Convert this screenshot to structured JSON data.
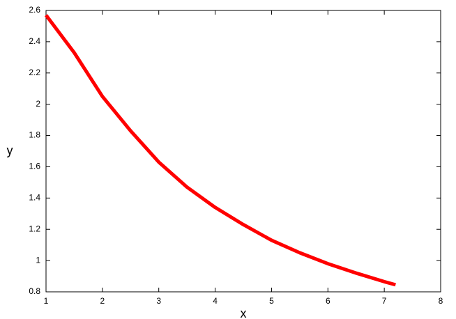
{
  "chart_data": {
    "type": "line",
    "x_label": "x",
    "y_label": "y",
    "x": [
      1,
      1.5,
      2,
      2.5,
      3,
      3.5,
      4,
      4.5,
      5,
      5.5,
      6,
      6.5,
      7,
      7.2
    ],
    "series": [
      {
        "color": "#ff0000",
        "values": [
          2.57,
          2.33,
          2.05,
          1.83,
          1.63,
          1.47,
          1.34,
          1.23,
          1.13,
          1.05,
          0.98,
          0.92,
          0.865,
          0.845
        ]
      }
    ],
    "xlim": [
      1,
      8
    ],
    "xticks": [
      1,
      2,
      3,
      4,
      5,
      6,
      7,
      8
    ],
    "ylim": [
      0.8,
      2.6
    ],
    "yticks": [
      0.8,
      1,
      1.2,
      1.4,
      1.6,
      1.8,
      2,
      2.2,
      2.4,
      2.6
    ],
    "grid": false
  }
}
